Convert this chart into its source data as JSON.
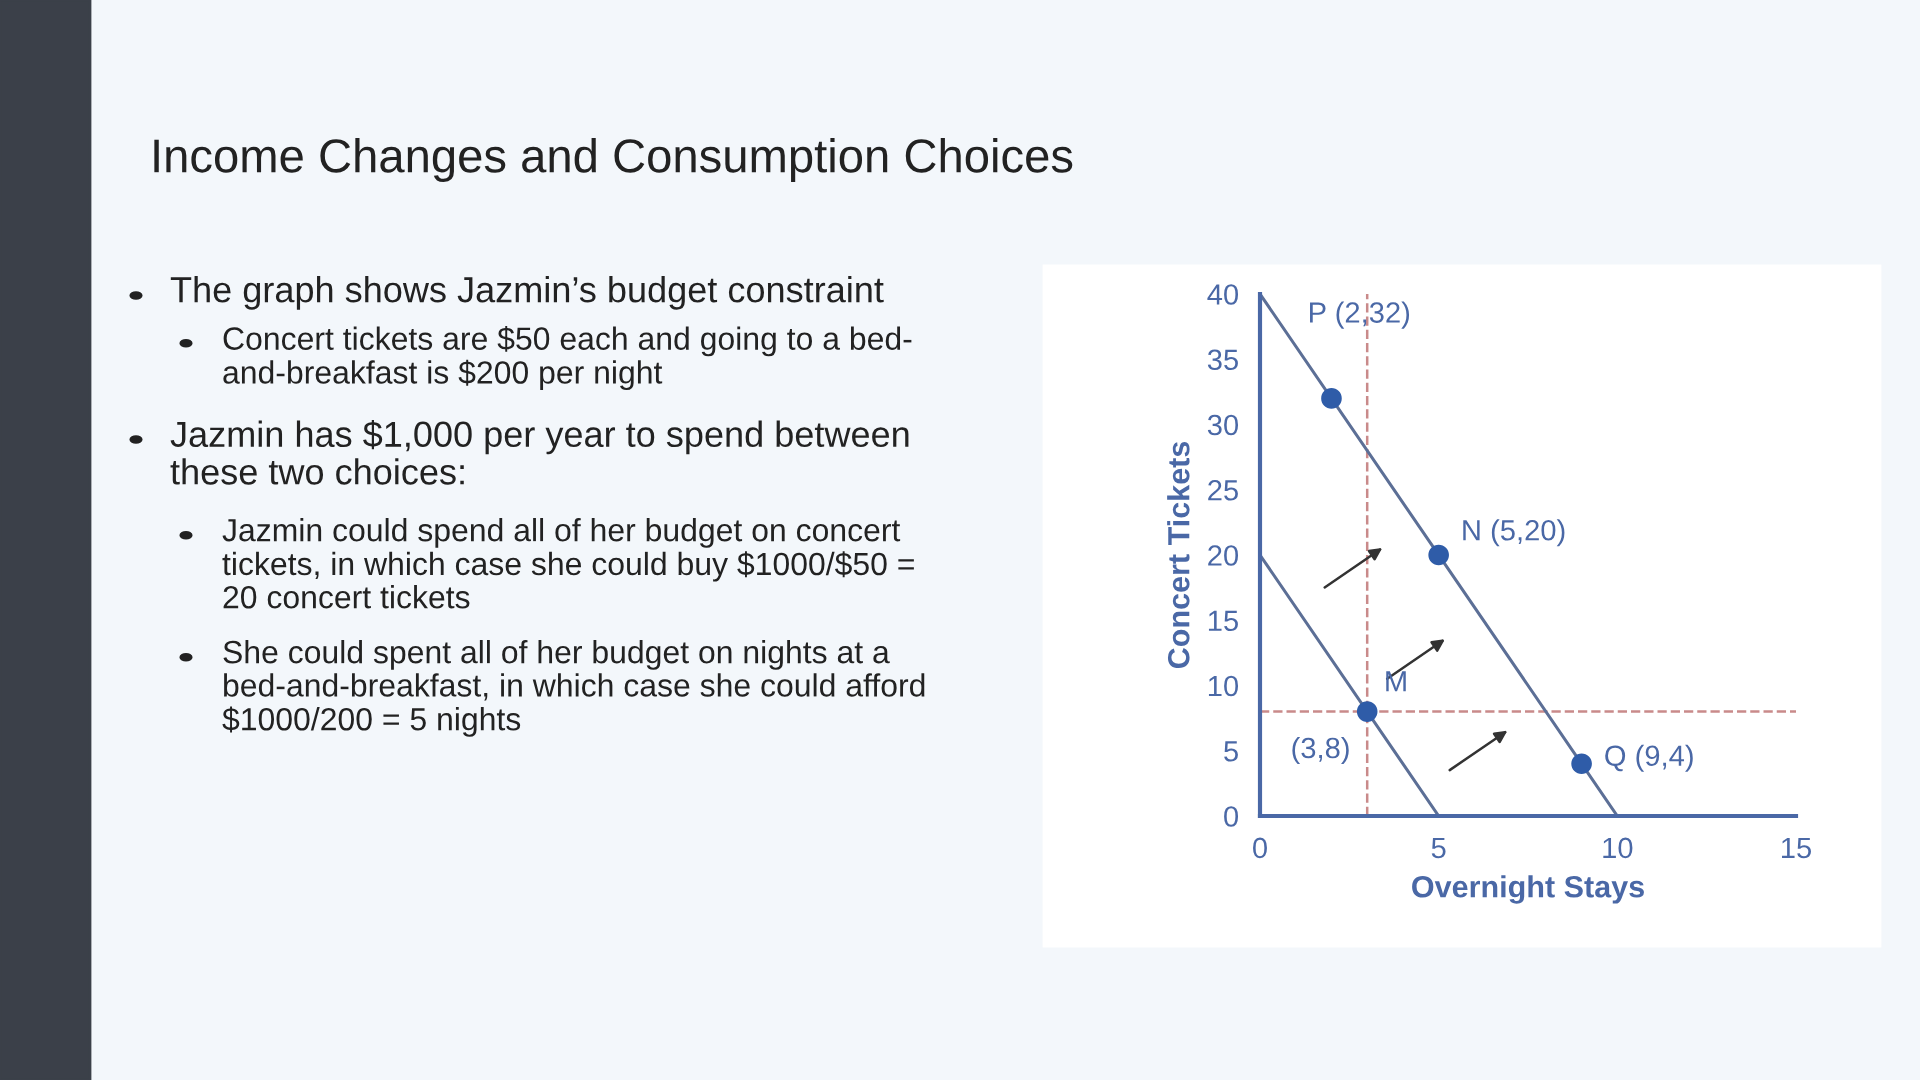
{
  "chart_data": {
    "type": "line",
    "title": "Income Changes and Consumption Choices",
    "xlabel": "Overnight Stays",
    "ylabel": "Concert Tickets",
    "xlim": [
      0,
      15
    ],
    "xticks": [
      0,
      5,
      10,
      15
    ],
    "ylim": [
      0,
      40
    ],
    "yticks": [
      0,
      5,
      10,
      15,
      20,
      25,
      30,
      35,
      40
    ],
    "series": [
      {
        "color": "#5c6f96",
        "x": [
          0,
          10
        ],
        "values": [
          40,
          0
        ],
        "marker": "none"
      },
      {
        "color": "#5c6f96",
        "x": [
          0,
          5
        ],
        "values": [
          20,
          0
        ],
        "marker": "none"
      },
      {
        "type": "scatter",
        "color": "#2f5ca8",
        "x": [
          2,
          5,
          9,
          3
        ],
        "values": [
          32,
          20,
          4,
          8
        ],
        "marker": "circle"
      }
    ],
    "ref_lines": [
      {
        "axis": "x",
        "value": 3,
        "color": "#c98a8a",
        "line_style": "dashed"
      },
      {
        "axis": "y",
        "value": 8,
        "color": "#c98a8a",
        "line_style": "dashed"
      }
    ],
    "annotations": [
      "The graph shows Jazmin’s budget constraint",
      "Concert tickets are $50 each and going to a bed-\nand-breakfast is $200 per night",
      "Jazmin has $1,000 per year to spend between\nthese two choices:",
      "Jazmin could spend all of her budget on concert\ntickets, in which case she could buy $1000/$50 =\n20 concert tickets",
      "She could spent all of her budget on nights at a\nbed-and-breakfast, in which case she could afford\n$1000/200 = 5 nights",
      {
        "text": "P (2,32)",
        "x": 2,
        "y": 32
      },
      {
        "text": "N (5,20)",
        "x": 5,
        "y": 20
      },
      {
        "text": "Q (9,4)",
        "x": 9,
        "y": 4
      },
      {
        "text": "M",
        "x": 3,
        "y": 8
      },
      {
        "text": "(3,8)",
        "x": 3,
        "y": 8
      }
    ],
    "grid": false,
    "legend": false
  }
}
